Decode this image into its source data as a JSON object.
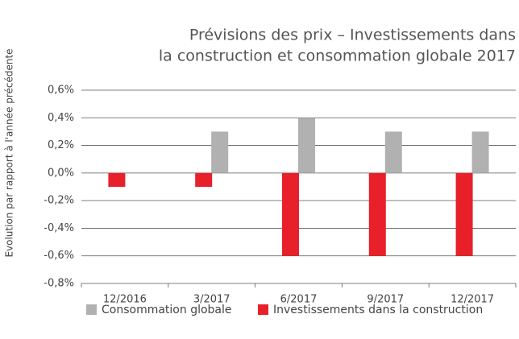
{
  "chart_data": {
    "type": "bar",
    "title": [
      "Prévisions des prix – Investissements dans",
      "la construction et consommation globale 2017"
    ],
    "y_label": "Evolution par rapport à l'année précédente",
    "categories": [
      "12/2016",
      "3/2017",
      "6/2017",
      "9/2017",
      "12/2017"
    ],
    "series": [
      {
        "name": "Investissements dans la construction",
        "color": "#e8202a",
        "values": [
          -0.1,
          -0.1,
          -0.6,
          -0.6,
          -0.6
        ]
      },
      {
        "name": "Consommation globale",
        "color": "#b1b1b1",
        "values": [
          null,
          0.3,
          0.4,
          0.3,
          0.3
        ]
      }
    ],
    "ylim": [
      -0.8,
      0.6
    ],
    "yticks": [
      {
        "value": 0.6,
        "label": "0,6%"
      },
      {
        "value": 0.4,
        "label": "0,4%"
      },
      {
        "value": 0.2,
        "label": "0,2%"
      },
      {
        "value": 0,
        "label": "0,0%"
      },
      {
        "value": -0.2,
        "label": "-0,2%"
      },
      {
        "value": -0.4,
        "label": "-0,4%"
      },
      {
        "value": -0.6,
        "label": "-0,6%"
      },
      {
        "value": -0.8,
        "label": "-0,8%"
      }
    ],
    "grid": true
  }
}
